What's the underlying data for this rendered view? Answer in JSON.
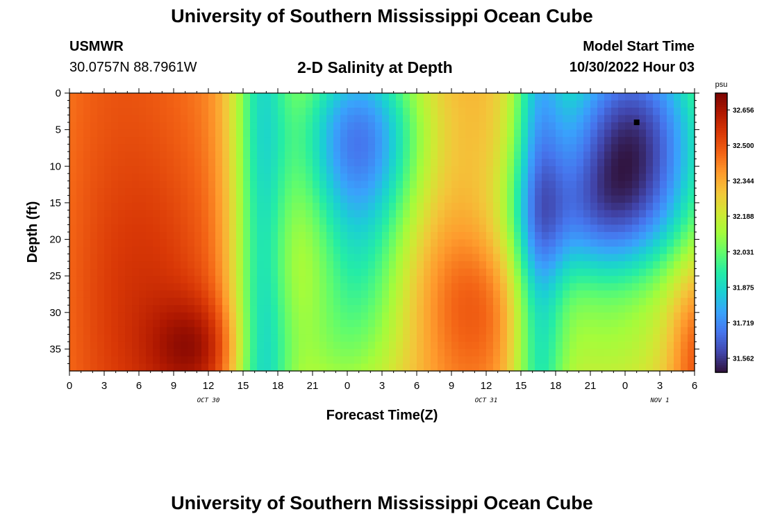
{
  "header": {
    "title": "University of Southern Mississippi Ocean Cube",
    "station": "USMWR",
    "coords": "30.0757N  88.7961W",
    "plot_title": "2-D Salinity at Depth",
    "model_start_label": "Model Start Time",
    "model_start_value": "10/30/2022 Hour 03"
  },
  "footer": {
    "title": "University of Southern Mississippi Ocean Cube"
  },
  "chart_data": {
    "type": "heatmap",
    "title": "2-D Salinity at Depth",
    "xlabel": "Forecast Time(Z)",
    "ylabel": "Depth (ft)",
    "x_range_hours": [
      0,
      54
    ],
    "y_range_ft": [
      0,
      38
    ],
    "y_inverted": true,
    "x_ticks": [
      "0",
      "3",
      "6",
      "9",
      "12",
      "15",
      "18",
      "21",
      "0",
      "3",
      "6",
      "9",
      "12",
      "15",
      "18",
      "21",
      "0",
      "3",
      "6"
    ],
    "y_ticks": [
      "0",
      "5",
      "10",
      "15",
      "20",
      "25",
      "30",
      "35"
    ],
    "y_tick_values": [
      0,
      5,
      10,
      15,
      20,
      25,
      30,
      35
    ],
    "date_labels": [
      {
        "text": "OCT 30",
        "hour": 12
      },
      {
        "text": "OCT 31",
        "hour": 36
      },
      {
        "text": "NOV 1",
        "hour": 51
      }
    ],
    "colorbar": {
      "unit": "psu",
      "ticks": [
        "32.656",
        "32.500",
        "32.344",
        "32.188",
        "32.031",
        "31.875",
        "31.719",
        "31.562"
      ],
      "min": 31.5,
      "max": 32.73,
      "colors": [
        "#30123b",
        "#4145ab",
        "#4675ed",
        "#39a2fc",
        "#1bcfd4",
        "#24eca6",
        "#61fc6c",
        "#a4fc3b",
        "#d1e834",
        "#f3c63a",
        "#fe9b2d",
        "#f36315",
        "#d93806",
        "#b11901",
        "#7a0402"
      ]
    },
    "marker": {
      "hour": 49,
      "depth_ft": 4
    },
    "grid": false,
    "legend": "colorbar-right"
  }
}
